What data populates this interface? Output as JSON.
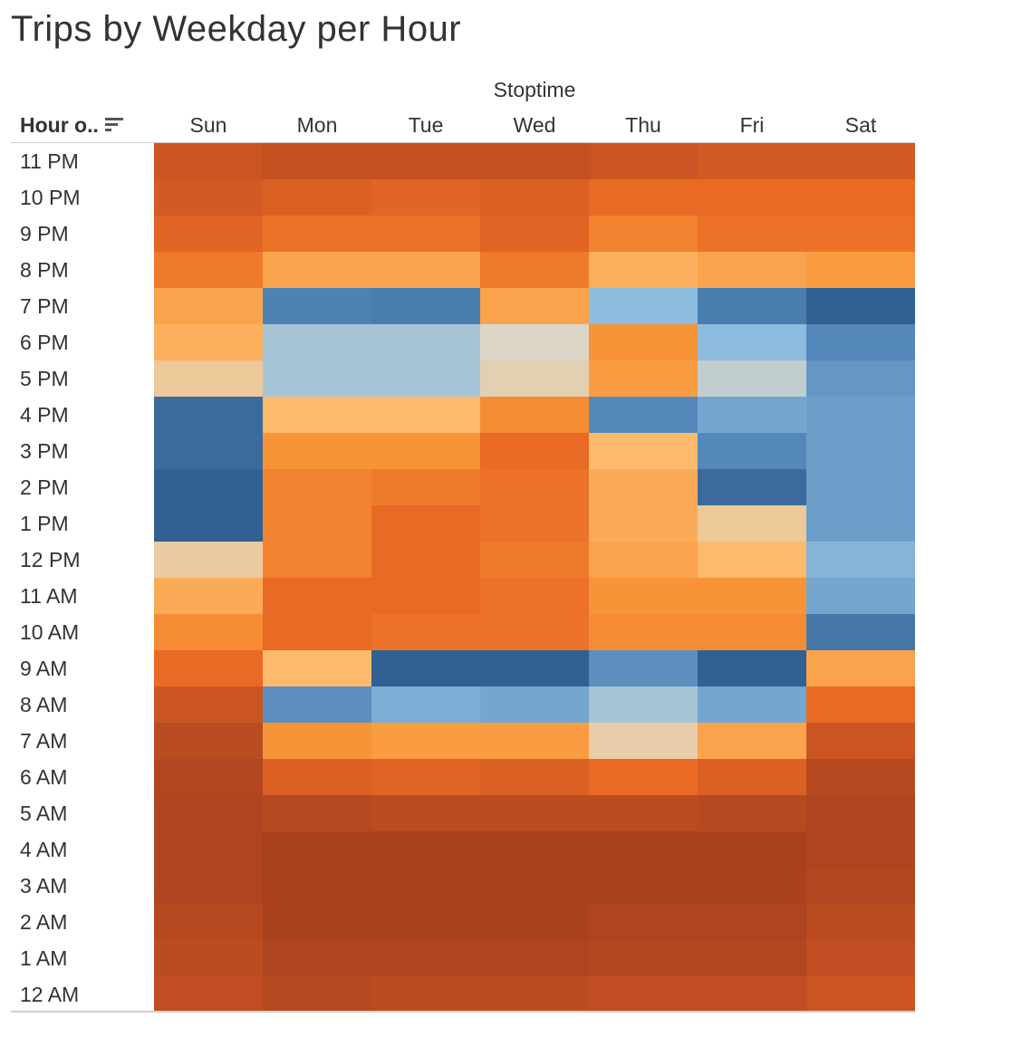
{
  "title": "Trips by Weekday per Hour",
  "column_group_label": "Stoptime",
  "row_header_label": "Hour o..",
  "colors": {
    "low_blue": "#2c5a8c",
    "mid_neutral": "#ddd5c5",
    "high_orange": "#f4802c",
    "max_brown": "#9c3a1e"
  },
  "chart_data": {
    "type": "heatmap",
    "title": "Trips by Weekday per Hour",
    "columns": [
      "Sun",
      "Mon",
      "Tue",
      "Wed",
      "Thu",
      "Fri",
      "Sat"
    ],
    "rows": [
      "11 PM",
      "10 PM",
      "9 PM",
      "8 PM",
      "7 PM",
      "6 PM",
      "5 PM",
      "4 PM",
      "3 PM",
      "2 PM",
      "1 PM",
      "12 PM",
      "11 AM",
      "10 AM",
      "9 AM",
      "8 AM",
      "7 AM",
      "6 AM",
      "5 AM",
      "4 AM",
      "3 AM",
      "2 AM",
      "1 AM",
      "12 AM"
    ],
    "values": [
      [
        0.8,
        0.82,
        0.82,
        0.82,
        0.8,
        0.78,
        0.78
      ],
      [
        0.78,
        0.76,
        0.74,
        0.76,
        0.72,
        0.72,
        0.72
      ],
      [
        0.74,
        0.7,
        0.7,
        0.74,
        0.66,
        0.7,
        0.7
      ],
      [
        0.68,
        0.58,
        0.58,
        0.68,
        0.55,
        0.58,
        0.6
      ],
      [
        0.58,
        0.14,
        0.12,
        0.58,
        0.3,
        0.12,
        0.02
      ],
      [
        0.55,
        0.34,
        0.34,
        0.42,
        0.62,
        0.3,
        0.16
      ],
      [
        0.47,
        0.34,
        0.34,
        0.44,
        0.6,
        0.38,
        0.2
      ],
      [
        0.06,
        0.52,
        0.52,
        0.64,
        0.16,
        0.24,
        0.22
      ],
      [
        0.06,
        0.62,
        0.62,
        0.72,
        0.52,
        0.16,
        0.22
      ],
      [
        0.02,
        0.66,
        0.68,
        0.7,
        0.56,
        0.06,
        0.22
      ],
      [
        0.02,
        0.66,
        0.72,
        0.7,
        0.56,
        0.47,
        0.22
      ],
      [
        0.46,
        0.66,
        0.72,
        0.68,
        0.58,
        0.52,
        0.28
      ],
      [
        0.56,
        0.72,
        0.72,
        0.7,
        0.62,
        0.62,
        0.24
      ],
      [
        0.64,
        0.72,
        0.7,
        0.7,
        0.64,
        0.64,
        0.1
      ],
      [
        0.72,
        0.52,
        0.02,
        0.02,
        0.18,
        0.02,
        0.58
      ],
      [
        0.8,
        0.18,
        0.26,
        0.24,
        0.34,
        0.24,
        0.72
      ],
      [
        0.86,
        0.62,
        0.6,
        0.6,
        0.45,
        0.58,
        0.8
      ],
      [
        0.9,
        0.76,
        0.74,
        0.76,
        0.72,
        0.76,
        0.88
      ],
      [
        0.92,
        0.88,
        0.86,
        0.86,
        0.86,
        0.88,
        0.92
      ],
      [
        0.92,
        0.94,
        0.94,
        0.94,
        0.94,
        0.94,
        0.92
      ],
      [
        0.92,
        0.94,
        0.94,
        0.94,
        0.94,
        0.94,
        0.9
      ],
      [
        0.88,
        0.94,
        0.94,
        0.94,
        0.92,
        0.92,
        0.86
      ],
      [
        0.86,
        0.92,
        0.92,
        0.92,
        0.9,
        0.9,
        0.84
      ],
      [
        0.84,
        0.88,
        0.86,
        0.86,
        0.84,
        0.84,
        0.8
      ]
    ],
    "color_scale": "diverging blue-neutral-orange (0 = darkest blue, 0.45 = neutral, 1 = darkest brown)",
    "grid": false
  }
}
